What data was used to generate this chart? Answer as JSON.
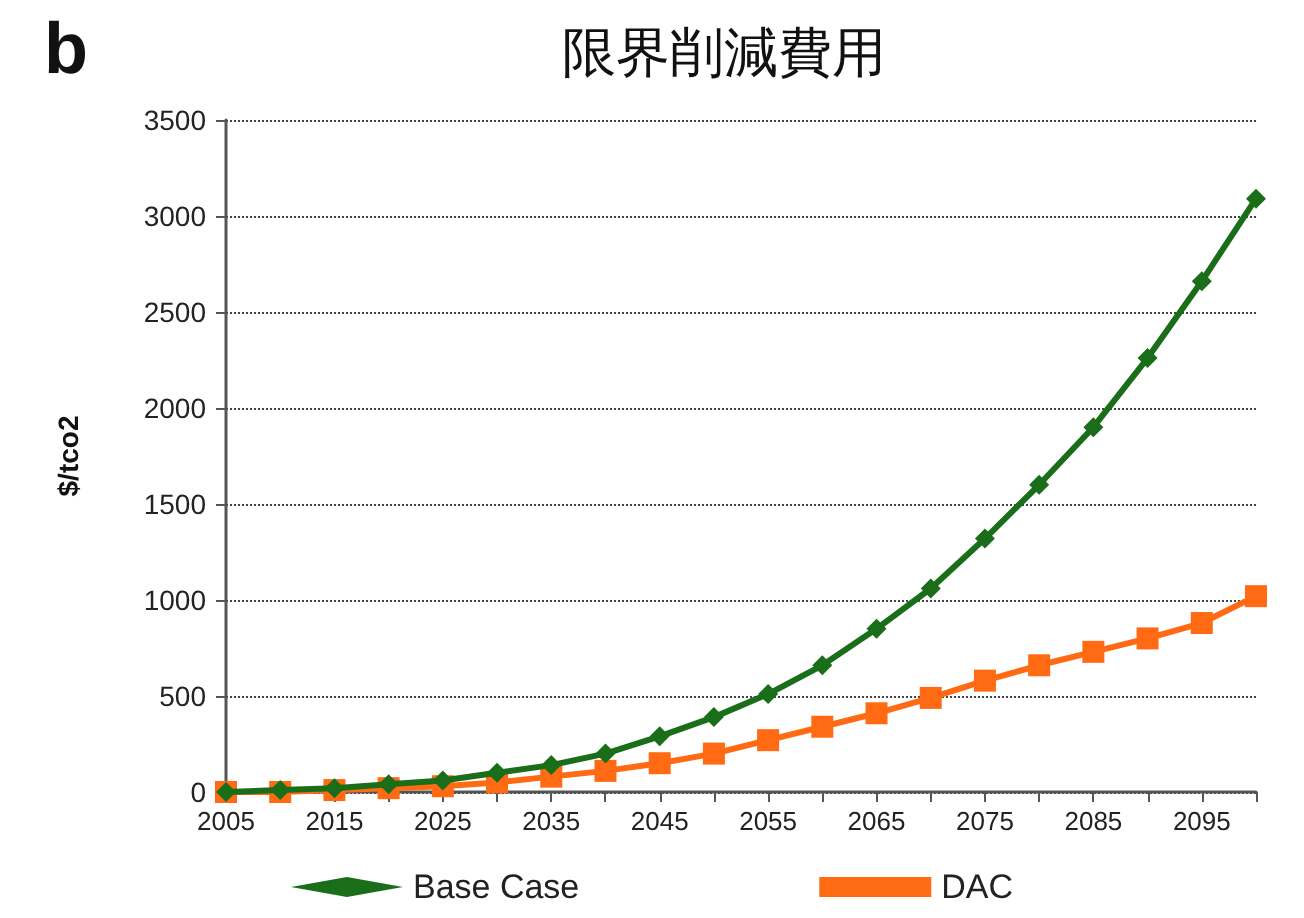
{
  "chart_data": {
    "type": "line",
    "title": "限界削減費用",
    "ylabel": "$/tco2",
    "annotations": [
      "b"
    ],
    "categories": [
      "2005",
      null,
      "2015",
      null,
      "2025",
      null,
      "2035",
      null,
      "2045",
      null,
      "2055",
      null,
      "2065",
      null,
      "2075",
      null,
      "2085",
      null,
      "2095",
      null
    ],
    "series": [
      {
        "name": "Base Case",
        "color": "#1a6e1a",
        "marker": "diamond",
        "values": [
          0,
          10,
          20,
          40,
          60,
          100,
          140,
          200,
          290,
          390,
          510,
          660,
          850,
          1060,
          1320,
          1600,
          1900,
          2260,
          2660,
          3090
        ]
      },
      {
        "name": "DAC",
        "color": "#ff6a13",
        "marker": "square",
        "values": [
          0,
          0,
          10,
          20,
          30,
          50,
          80,
          110,
          150,
          200,
          270,
          340,
          410,
          490,
          580,
          660,
          730,
          800,
          880,
          1020
        ]
      }
    ],
    "ylim": [
      0,
      3500
    ],
    "yticks": [
      0,
      500,
      1000,
      1500,
      2000,
      2500,
      3000,
      3500
    ],
    "grid": "y",
    "legend": "bottom",
    "line_style": "solid"
  }
}
